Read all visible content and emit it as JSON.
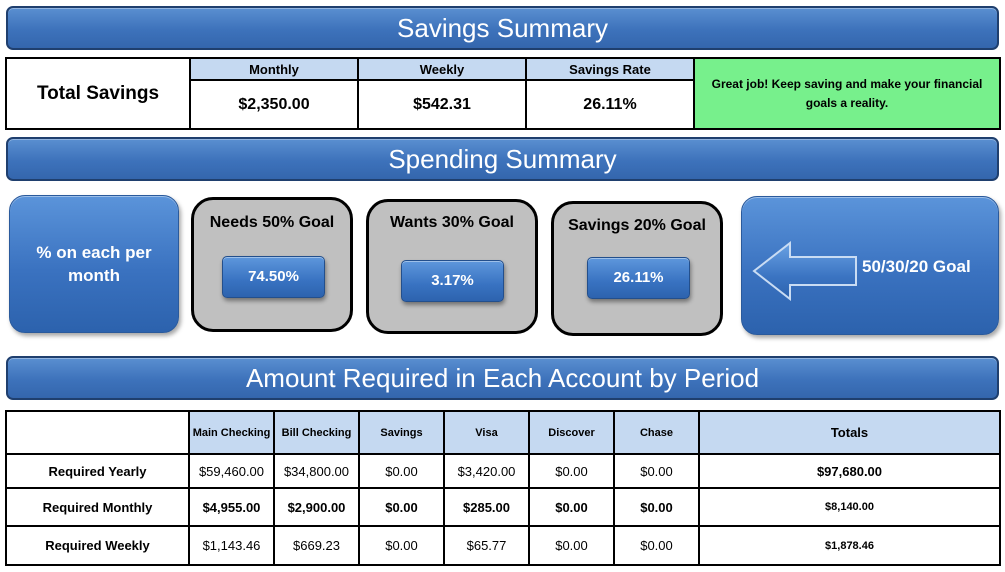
{
  "savings_summary": {
    "title": "Savings Summary",
    "row_label": "Total Savings",
    "columns": [
      {
        "header": "Monthly",
        "value": "$2,350.00"
      },
      {
        "header": "Weekly",
        "value": "$542.31"
      },
      {
        "header": "Savings Rate",
        "value": "26.11%"
      }
    ],
    "message": "Great job! Keep saving and make your financial goals a reality.",
    "message_color": "#77f08c"
  },
  "spending_summary": {
    "title": "Spending Summary",
    "left_label": "% on each per month",
    "goals": [
      {
        "title": "Needs 50% Goal",
        "value": "74.50%"
      },
      {
        "title": "Wants 30% Goal",
        "value": "3.17%"
      },
      {
        "title": "Savings 20% Goal",
        "value": "26.11%"
      }
    ],
    "right_label": "50/30/20 Goal",
    "right_icon": "left-arrow-icon"
  },
  "amount_required": {
    "title": "Amount Required in Each Account by Period",
    "headers": [
      "Main Checking",
      "Bill Checking",
      "Savings",
      "Visa",
      "Discover",
      "Chase",
      "Totals"
    ],
    "rows": [
      {
        "label": "Required Yearly",
        "values": [
          "$59,460.00",
          "$34,800.00",
          "$0.00",
          "$3,420.00",
          "$0.00",
          "$0.00",
          "$97,680.00"
        ]
      },
      {
        "label": "Required Monthly",
        "values": [
          "$4,955.00",
          "$2,900.00",
          "$0.00",
          "$285.00",
          "$0.00",
          "$0.00",
          "$8,140.00"
        ]
      },
      {
        "label": "Required Weekly",
        "values": [
          "$1,143.46",
          "$669.23",
          "$0.00",
          "$65.77",
          "$0.00",
          "$0.00",
          "$1,878.46"
        ]
      }
    ]
  },
  "colors": {
    "banner_blue": "#3d72bb",
    "header_cell": "#c5d9f1",
    "goal_box": "#c0c0c0"
  }
}
